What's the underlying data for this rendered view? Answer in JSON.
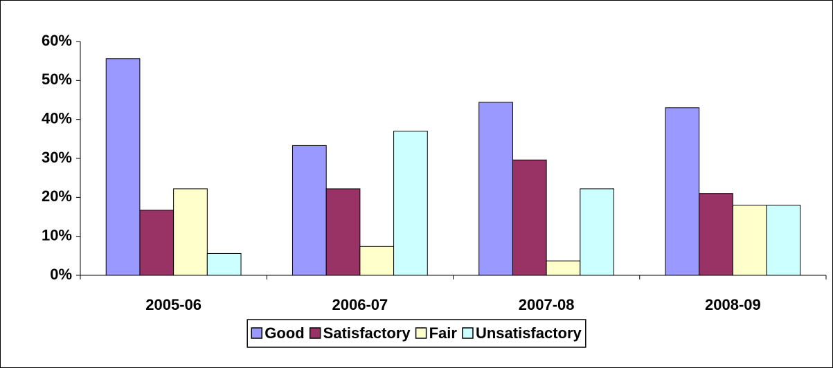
{
  "chart_data": {
    "type": "bar",
    "categories": [
      "2005-06",
      "2006-07",
      "2007-08",
      "2008-09"
    ],
    "series": [
      {
        "name": "Good",
        "color": "#9999ff",
        "values": [
          55.6,
          33.3,
          44.4,
          43
        ]
      },
      {
        "name": "Satisfactory",
        "color": "#993366",
        "values": [
          16.7,
          22.2,
          29.6,
          21
        ]
      },
      {
        "name": "Fair",
        "color": "#ffffcc",
        "values": [
          22.2,
          7.4,
          3.7,
          18
        ]
      },
      {
        "name": "Unsatisfactory",
        "color": "#ccffff",
        "values": [
          5.6,
          37,
          22.2,
          18
        ]
      }
    ],
    "ylim": [
      0,
      60
    ],
    "yticks": [
      {
        "value": 0,
        "label": "0%"
      },
      {
        "value": 10,
        "label": "10%"
      },
      {
        "value": 20,
        "label": "20%"
      },
      {
        "value": 30,
        "label": "30%"
      },
      {
        "value": 40,
        "label": "40%"
      },
      {
        "value": 50,
        "label": "50%"
      },
      {
        "value": 60,
        "label": "60%"
      }
    ],
    "grid": false,
    "legend": "bottom"
  }
}
